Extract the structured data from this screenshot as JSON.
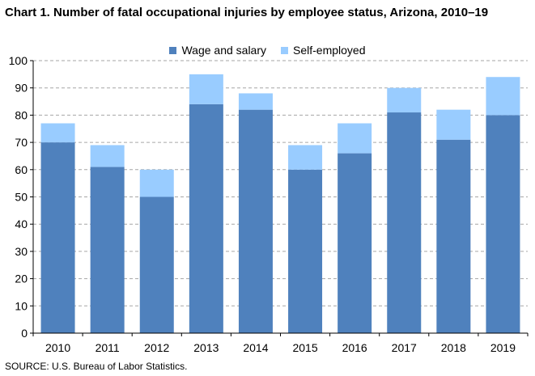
{
  "title": "Chart 1. Number of fatal occupational injuries by employee status, Arizona, 2010–19",
  "source": "SOURCE: U.S. Bureau of Labor Statistics.",
  "colors": {
    "wage": "#4f81bd",
    "self": "#99ccff",
    "grid": "#a6a6a6"
  },
  "chart_data": {
    "type": "bar",
    "stacked": true,
    "title": "Chart 1. Number of fatal occupational injuries by employee status, Arizona, 2010–19",
    "categories": [
      "2010",
      "2011",
      "2012",
      "2013",
      "2014",
      "2015",
      "2016",
      "2017",
      "2018",
      "2019"
    ],
    "series": [
      {
        "name": "Wage and salary",
        "values": [
          70,
          61,
          50,
          84,
          82,
          60,
          66,
          81,
          71,
          80
        ]
      },
      {
        "name": "Self-employed",
        "values": [
          7,
          8,
          10,
          11,
          6,
          9,
          11,
          9,
          11,
          14
        ]
      }
    ],
    "ylim": [
      0,
      100
    ],
    "yticks": [
      0,
      10,
      20,
      30,
      40,
      50,
      60,
      70,
      80,
      90,
      100
    ],
    "grid": true,
    "legend_position": "top-center"
  }
}
